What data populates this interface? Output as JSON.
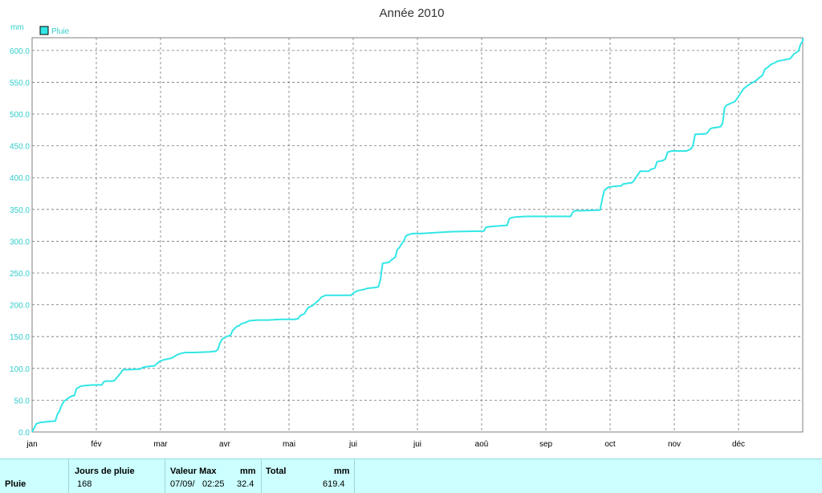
{
  "chart_data": {
    "type": "line",
    "title": "Année 2010",
    "ylabel": "mm",
    "xlabel": "",
    "legend": {
      "label": "Pluie",
      "placement": "top-left"
    },
    "x_ticks": [
      "jan",
      "fév",
      "mar",
      "avr",
      "mai",
      "jui",
      "jui",
      "aoû",
      "sep",
      "oct",
      "nov",
      "déc"
    ],
    "y_ticks": [
      "0.0",
      "50.0",
      "100.0",
      "150.0",
      "200.0",
      "250.0",
      "300.0",
      "350.0",
      "400.0",
      "450.0",
      "500.0",
      "550.0",
      "600.0"
    ],
    "ylim": [
      0,
      620
    ],
    "xlim": [
      1,
      366
    ],
    "grid": true,
    "series_color": "#33e6e6",
    "series": [
      {
        "name": "Pluie",
        "x_unit": "day of year",
        "points": [
          [
            1,
            0
          ],
          [
            3,
            13
          ],
          [
            5,
            15
          ],
          [
            8,
            16
          ],
          [
            11,
            17
          ],
          [
            12,
            17
          ],
          [
            13,
            28
          ],
          [
            14,
            33
          ],
          [
            15,
            42
          ],
          [
            16,
            48
          ],
          [
            18,
            53
          ],
          [
            20,
            57
          ],
          [
            21,
            57
          ],
          [
            22,
            68
          ],
          [
            24,
            72
          ],
          [
            26,
            73
          ],
          [
            30,
            74
          ],
          [
            34,
            74
          ],
          [
            35,
            79
          ],
          [
            36,
            80
          ],
          [
            39,
            80
          ],
          [
            40,
            81
          ],
          [
            41,
            85
          ],
          [
            43,
            93
          ],
          [
            44,
            98
          ],
          [
            47,
            98
          ],
          [
            52,
            99
          ],
          [
            54,
            102
          ],
          [
            56,
            103
          ],
          [
            59,
            104
          ],
          [
            61,
            110
          ],
          [
            62,
            112
          ],
          [
            64,
            114
          ],
          [
            67,
            116
          ],
          [
            68,
            118
          ],
          [
            70,
            122
          ],
          [
            72,
            124
          ],
          [
            74,
            125
          ],
          [
            78,
            125
          ],
          [
            85,
            126
          ],
          [
            88,
            127
          ],
          [
            89,
            130
          ],
          [
            90,
            140
          ],
          [
            91,
            146
          ],
          [
            93,
            150
          ],
          [
            95,
            152
          ],
          [
            96,
            160
          ],
          [
            98,
            166
          ],
          [
            99,
            167
          ],
          [
            100,
            170
          ],
          [
            102,
            172
          ],
          [
            104,
            175
          ],
          [
            108,
            176
          ],
          [
            113,
            176
          ],
          [
            118,
            177
          ],
          [
            125,
            177
          ],
          [
            127,
            178
          ],
          [
            128,
            183
          ],
          [
            130,
            186
          ],
          [
            131,
            192
          ],
          [
            132,
            196
          ],
          [
            134,
            199
          ],
          [
            135,
            202
          ],
          [
            137,
            208
          ],
          [
            138,
            212
          ],
          [
            140,
            215
          ],
          [
            145,
            215
          ],
          [
            152,
            215
          ],
          [
            153,
            218
          ],
          [
            155,
            222
          ],
          [
            158,
            224
          ],
          [
            160,
            226
          ],
          [
            163,
            227
          ],
          [
            165,
            228
          ],
          [
            166,
            240
          ],
          [
            167,
            265
          ],
          [
            170,
            267
          ],
          [
            171,
            270
          ],
          [
            173,
            275
          ],
          [
            174,
            287
          ],
          [
            175,
            290
          ],
          [
            176,
            296
          ],
          [
            177,
            300
          ],
          [
            178,
            308
          ],
          [
            179,
            310
          ],
          [
            181,
            312
          ],
          [
            185,
            312
          ],
          [
            195,
            314
          ],
          [
            200,
            315
          ],
          [
            215,
            316
          ],
          [
            216,
            322
          ],
          [
            218,
            323
          ],
          [
            222,
            324
          ],
          [
            226,
            325
          ],
          [
            227,
            335
          ],
          [
            228,
            337
          ],
          [
            230,
            338
          ],
          [
            235,
            339
          ],
          [
            256,
            339
          ],
          [
            257,
            345
          ],
          [
            258,
            348
          ],
          [
            262,
            348
          ],
          [
            270,
            349
          ],
          [
            271,
            365
          ],
          [
            272,
            380
          ],
          [
            274,
            385
          ],
          [
            276,
            386
          ],
          [
            280,
            387
          ],
          [
            281,
            390
          ],
          [
            285,
            392
          ],
          [
            286,
            395
          ],
          [
            287,
            400
          ],
          [
            289,
            410
          ],
          [
            293,
            410
          ],
          [
            294,
            413
          ],
          [
            296,
            415
          ],
          [
            297,
            425
          ],
          [
            300,
            427
          ],
          [
            301,
            430
          ],
          [
            302,
            440
          ],
          [
            304,
            442
          ],
          [
            311,
            442
          ],
          [
            313,
            445
          ],
          [
            314,
            450
          ],
          [
            315,
            468
          ],
          [
            320,
            469
          ],
          [
            321,
            471
          ],
          [
            322,
            476
          ],
          [
            323,
            478
          ],
          [
            327,
            480
          ],
          [
            328,
            485
          ],
          [
            329,
            510
          ],
          [
            330,
            514
          ],
          [
            332,
            517
          ],
          [
            334,
            520
          ],
          [
            335,
            525
          ],
          [
            336,
            530
          ],
          [
            338,
            540
          ],
          [
            340,
            545
          ],
          [
            342,
            549
          ],
          [
            344,
            553
          ],
          [
            345,
            556
          ],
          [
            347,
            561
          ],
          [
            348,
            570
          ],
          [
            350,
            575
          ],
          [
            351,
            578
          ],
          [
            353,
            581
          ],
          [
            354,
            583
          ],
          [
            357,
            585
          ],
          [
            360,
            587
          ],
          [
            361,
            591
          ],
          [
            362,
            595
          ],
          [
            363,
            597
          ],
          [
            364,
            599
          ],
          [
            365,
            610
          ],
          [
            366,
            615
          ],
          [
            368,
            618
          ],
          [
            372,
            619.4
          ]
        ]
      }
    ]
  },
  "stats": {
    "row_label": "Pluie",
    "jours_header": "Jours de pluie",
    "jours_value": "168",
    "max_header": "Valeur Max",
    "max_unit": "mm",
    "max_date": "07/09/",
    "max_time": "02:25",
    "max_value": "32.4",
    "total_header": "Total",
    "total_unit": "mm",
    "total_value": "619.4"
  }
}
